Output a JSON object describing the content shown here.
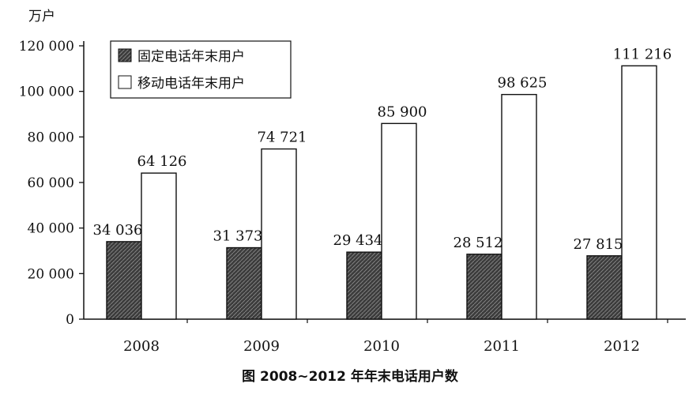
{
  "chart_data": {
    "type": "bar",
    "unit": "万户",
    "categories": [
      "2008",
      "2009",
      "2010",
      "2011",
      "2012"
    ],
    "series": [
      {
        "name": "固定电话年末用户",
        "values": [
          34036,
          31373,
          29434,
          28512,
          27815
        ],
        "labels": [
          "34 036",
          "31 373",
          "29 434",
          "28 512",
          "27 815"
        ],
        "fill": "hatched-dark"
      },
      {
        "name": "移动电话年末用户",
        "values": [
          64126,
          74721,
          85900,
          98625,
          111216
        ],
        "labels": [
          "64 126",
          "74 721",
          "85 900",
          "98 625",
          "111 216"
        ],
        "fill": "white"
      }
    ],
    "ylim": [
      0,
      120000
    ],
    "yticks": [
      0,
      20000,
      40000,
      60000,
      80000,
      100000,
      120000
    ],
    "ytick_labels": [
      "0",
      "20 000",
      "40 000",
      "60 000",
      "80 000",
      "100 000",
      "120 000"
    ],
    "caption": "图 2008~2012 年年末电话用户数",
    "legend_position": "top-left",
    "grid": false,
    "colors": {
      "fixed": "#3a3a3a",
      "mobile": "#ffffff",
      "outline": "#111111"
    }
  }
}
